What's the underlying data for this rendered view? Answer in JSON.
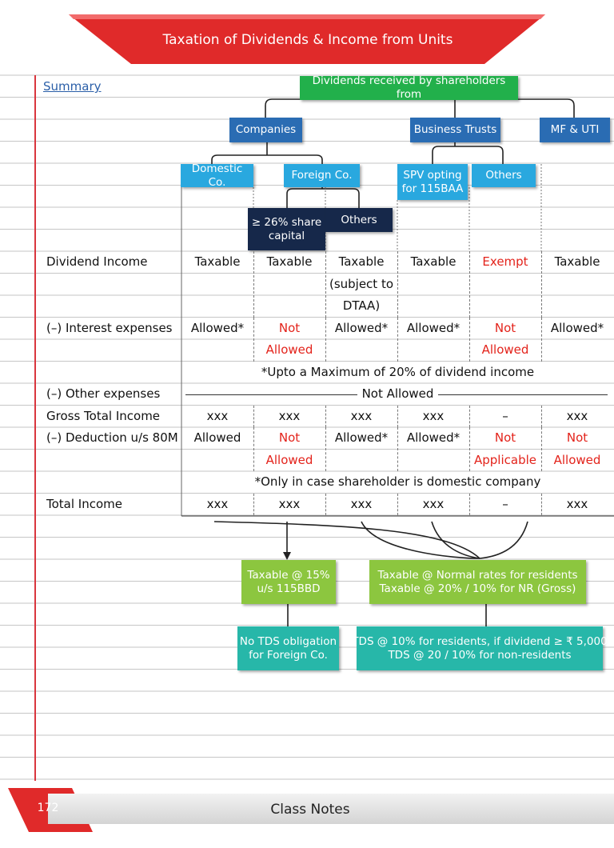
{
  "header": {
    "title": "Taxation of Dividends & Income from Units"
  },
  "section": "Summary",
  "tree": {
    "root": "Dividends received by shareholders from",
    "level1": [
      "Companies",
      "Business Trusts",
      "MF & UTI"
    ],
    "level2": [
      "Domestic Co.",
      "Foreign Co.",
      "SPV opting for 115BAA",
      "Others"
    ],
    "level3": [
      "≥ 26% share capital",
      "Others"
    ]
  },
  "table": {
    "rows": [
      {
        "label": "Dividend Income",
        "cells": [
          [
            "Taxable"
          ],
          [
            "Taxable"
          ],
          [
            "Taxable",
            "(subject to",
            "DTAA)"
          ],
          [
            "Taxable"
          ],
          {
            "lines": [
              "Exempt"
            ],
            "color": "#e3231b"
          },
          [
            "Taxable"
          ]
        ]
      },
      {
        "label": "(–) Interest expenses",
        "cells": [
          [
            "Allowed*"
          ],
          {
            "lines": [
              "Not",
              "Allowed"
            ],
            "color": "#e3231b"
          },
          [
            "Allowed*"
          ],
          [
            "Allowed*"
          ],
          {
            "lines": [
              "Not",
              "Allowed"
            ],
            "color": "#e3231b"
          },
          [
            "Allowed*"
          ]
        ],
        "note": "*Upto a Maximum of 20% of dividend income"
      },
      {
        "label": "(–) Other expenses",
        "all": "Not Allowed"
      },
      {
        "label": "Gross Total Income",
        "cells": [
          [
            "xxx"
          ],
          [
            "xxx"
          ],
          [
            "xxx"
          ],
          [
            "xxx"
          ],
          [
            "–"
          ],
          [
            "xxx"
          ]
        ]
      },
      {
        "label": "(–) Deduction u/s 80M",
        "cells": [
          [
            "Allowed"
          ],
          {
            "lines": [
              "Not",
              "Allowed"
            ],
            "color": "#e3231b"
          },
          [
            "Allowed*"
          ],
          [
            "Allowed*"
          ],
          {
            "lines": [
              "Not",
              "Applicable"
            ],
            "color": "#e3231b"
          },
          {
            "lines": [
              "Not",
              "Allowed"
            ],
            "color": "#e3231b"
          }
        ],
        "note": "*Only in case shareholder is domestic company"
      },
      {
        "label": "Total Income",
        "cells": [
          [
            "xxx"
          ],
          [
            "xxx"
          ],
          [
            "xxx"
          ],
          [
            "xxx"
          ],
          [
            "–"
          ],
          [
            "xxx"
          ]
        ]
      }
    ]
  },
  "outcomes": {
    "taxation": [
      [
        "Taxable @ 15%",
        "u/s 115BBD"
      ],
      [
        "Taxable @ Normal rates for residents",
        "Taxable @ 20% / 10% for NR (Gross)"
      ]
    ],
    "tds": [
      [
        "No TDS obligation",
        "for Foreign Co."
      ],
      [
        "TDS @ 10% for residents, if dividend ≥ ₹ 5,000",
        "TDS @ 20 / 10% for non-residents"
      ]
    ]
  },
  "footer": {
    "page": "172",
    "label": "Class Notes"
  }
}
